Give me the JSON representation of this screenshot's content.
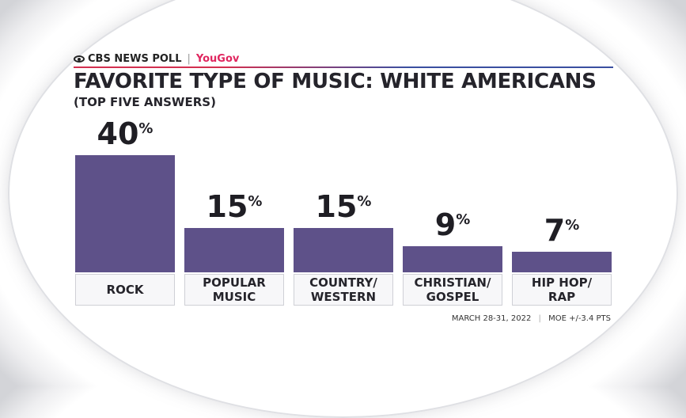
{
  "header": {
    "brand": "CBS NEWS POLL",
    "partner": "YouGov",
    "title": "FAVORITE TYPE OF MUSIC: WHITE AMERICANS",
    "subtitle": "(TOP FIVE ANSWERS)"
  },
  "footer": {
    "date": "MARCH 28-31, 2022",
    "moe": "MOE +/-3.4 PTS"
  },
  "colors": {
    "bar": "#5e5189",
    "brand_red": "#d32f4f",
    "brand_blue": "#3a4fa0",
    "yougov": "#e0265f"
  },
  "chart_data": {
    "type": "bar",
    "title": "FAVORITE TYPE OF MUSIC: WHITE AMERICANS",
    "subtitle": "(TOP FIVE ANSWERS)",
    "categories": [
      "ROCK",
      "POPULAR\nMUSIC",
      "COUNTRY/\nWESTERN",
      "CHRISTIAN/\nGOSPEL",
      "HIP HOP/\nRAP"
    ],
    "values": [
      40,
      15,
      15,
      9,
      7
    ],
    "value_suffix": "%",
    "ylim": [
      0,
      40
    ],
    "grid": false,
    "legend": "none"
  }
}
